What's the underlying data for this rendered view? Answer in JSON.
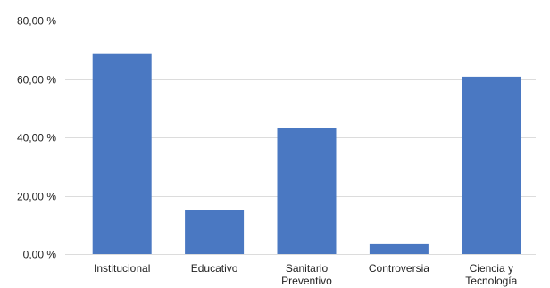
{
  "chart_data": {
    "type": "bar",
    "title": "",
    "xlabel": "",
    "ylabel": "",
    "categories": [
      "Institucional",
      "Educativo",
      "Sanitario Preventivo",
      "Controversia",
      "Ciencia y Tecnología"
    ],
    "category_label_lines": [
      [
        "Institucional"
      ],
      [
        "Educativo"
      ],
      [
        "Sanitario",
        "Preventivo"
      ],
      [
        "Controversia"
      ],
      [
        "Ciencia y",
        "Tecnología"
      ]
    ],
    "values": [
      68.5,
      15.0,
      43.3,
      3.4,
      60.8
    ],
    "ylim": [
      0,
      80
    ],
    "yticks": [
      0,
      20,
      40,
      60,
      80
    ],
    "ytick_labels": [
      "0,00 %",
      "20,00 %",
      "40,00 %",
      "60,00 %",
      "80,00 %"
    ],
    "grid": true,
    "legend": "none",
    "bar_color": "#4a78c2",
    "grid_color": "#dcdcdc"
  }
}
